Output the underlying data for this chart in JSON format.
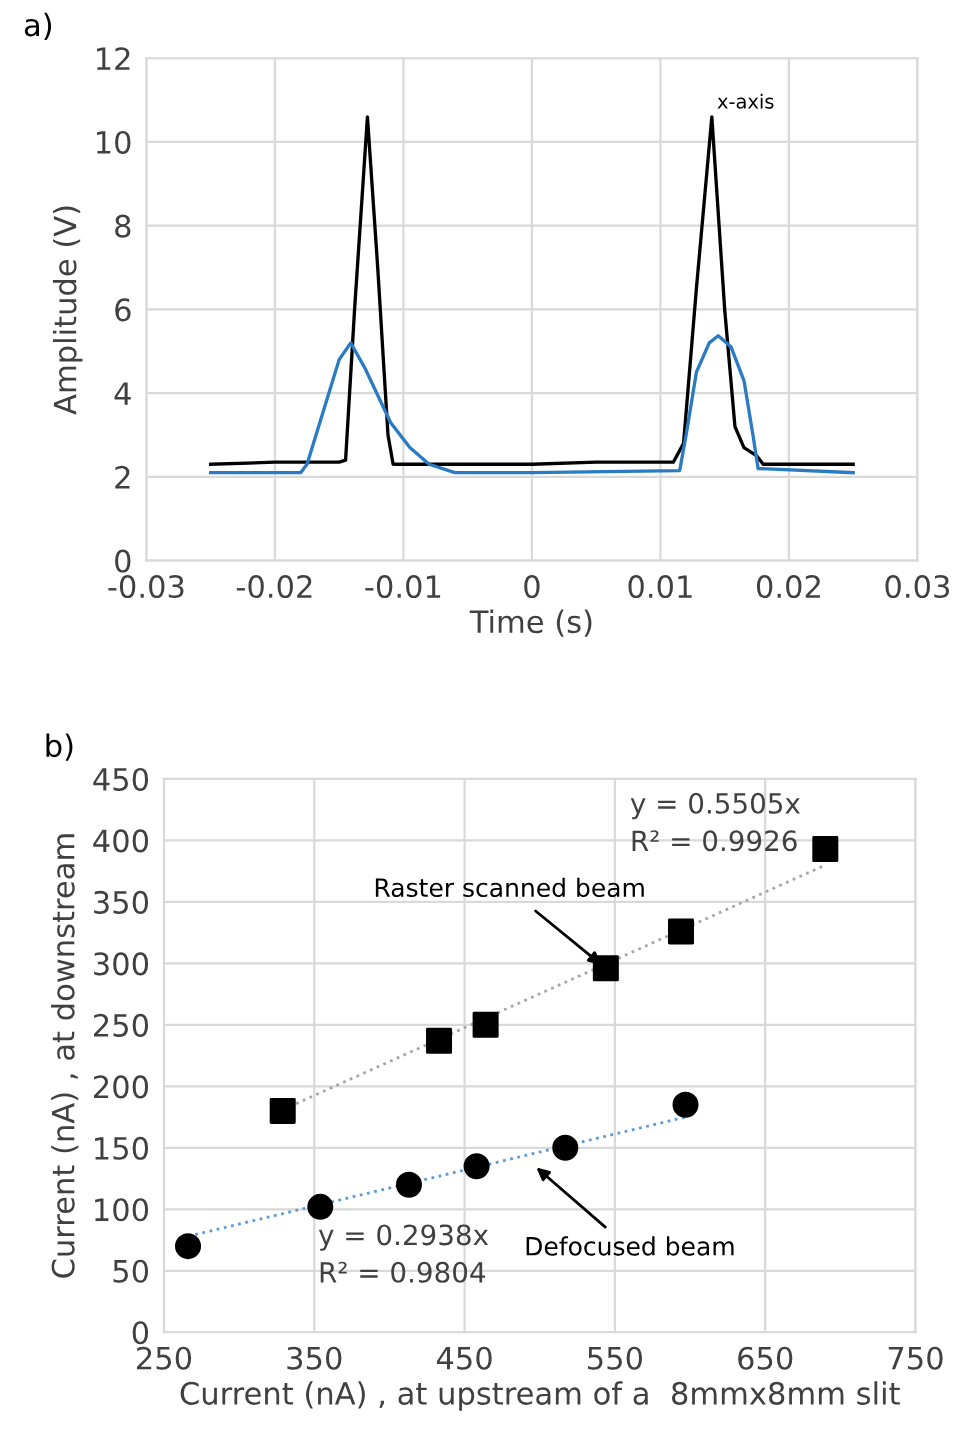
{
  "chart_data": [
    {
      "type": "line",
      "title": "a)",
      "xlabel": "Time (s)",
      "ylabel": "Amplitude (V)",
      "xlim": [
        -0.03,
        0.03
      ],
      "xticks": [
        -0.03,
        -0.02,
        -0.01,
        0,
        0.01,
        0.02,
        0.03
      ],
      "ylim": [
        0,
        12
      ],
      "yticks": [
        0,
        2,
        4,
        6,
        8,
        10,
        12
      ],
      "grid": true,
      "annotations": [
        "x-axis"
      ],
      "series": [
        {
          "color": "#000000",
          "x": [
            -0.025,
            -0.02,
            -0.015,
            -0.0145,
            -0.0138,
            -0.0128,
            -0.012,
            -0.0112,
            -0.0108,
            -0.005,
            0,
            0.005,
            0.011,
            0.0118,
            0.0128,
            0.014,
            0.015,
            0.0158,
            0.0165,
            0.0175,
            0.018,
            0.025
          ],
          "values": [
            2.3,
            2.35,
            2.35,
            2.4,
            6.0,
            10.6,
            7.0,
            3.0,
            2.3,
            2.3,
            2.3,
            2.35,
            2.35,
            2.8,
            6.5,
            10.6,
            6.0,
            3.2,
            2.7,
            2.5,
            2.3,
            2.3
          ]
        },
        {
          "color": "#2a7bc4",
          "x": [
            -0.025,
            -0.018,
            -0.0175,
            -0.016,
            -0.015,
            -0.0141,
            -0.013,
            -0.011,
            -0.0095,
            -0.008,
            -0.006,
            0,
            0.0115,
            0.012,
            0.0128,
            0.0138,
            0.0145,
            0.0155,
            0.0165,
            0.0172,
            0.0176,
            0.025
          ],
          "values": [
            2.1,
            2.1,
            2.3,
            3.8,
            4.8,
            5.2,
            4.6,
            3.3,
            2.7,
            2.3,
            2.1,
            2.1,
            2.15,
            3.0,
            4.5,
            5.2,
            5.37,
            5.1,
            4.3,
            3.0,
            2.2,
            2.1
          ]
        }
      ]
    },
    {
      "type": "scatter",
      "title": "b)",
      "xlabel": "Current (nA) , at upstream of a  8mmx8mm slit",
      "ylabel": "Current (nA) , at downstream",
      "xlim": [
        250,
        750
      ],
      "xticks": [
        250,
        350,
        450,
        550,
        650,
        750
      ],
      "ylim": [
        0,
        450
      ],
      "yticks": [
        0,
        50,
        100,
        150,
        200,
        250,
        300,
        350,
        400,
        450
      ],
      "grid": true,
      "annotations": [
        "y = 0.5505x\nR² = 0.9926",
        "y = 0.2938x\nR² = 0.9804",
        {
          "text": "Raster scanned beam",
          "x": 544,
          "y": 296
        },
        {
          "text": "Defocused beam",
          "x": 495,
          "y": 137
        }
      ],
      "series": [
        {
          "color": "#000000",
          "marker": "square",
          "x": [
            329,
            433,
            464,
            544,
            594,
            690
          ],
          "values": [
            180,
            237,
            250,
            296,
            326,
            393
          ]
        },
        {
          "color": "#000000",
          "marker": "circle",
          "x": [
            266,
            354,
            413,
            458,
            517,
            597
          ],
          "values": [
            70,
            102,
            120,
            135,
            150,
            185
          ]
        },
        {
          "type": "line",
          "color": "#a6a6a6",
          "line_style": "dotted",
          "x": [
            329,
            690
          ],
          "values": [
            181,
            380
          ]
        },
        {
          "type": "line",
          "color": "#5b9bd5",
          "line_style": "dotted",
          "x": [
            266,
            597
          ],
          "values": [
            78,
            175
          ]
        }
      ]
    }
  ]
}
